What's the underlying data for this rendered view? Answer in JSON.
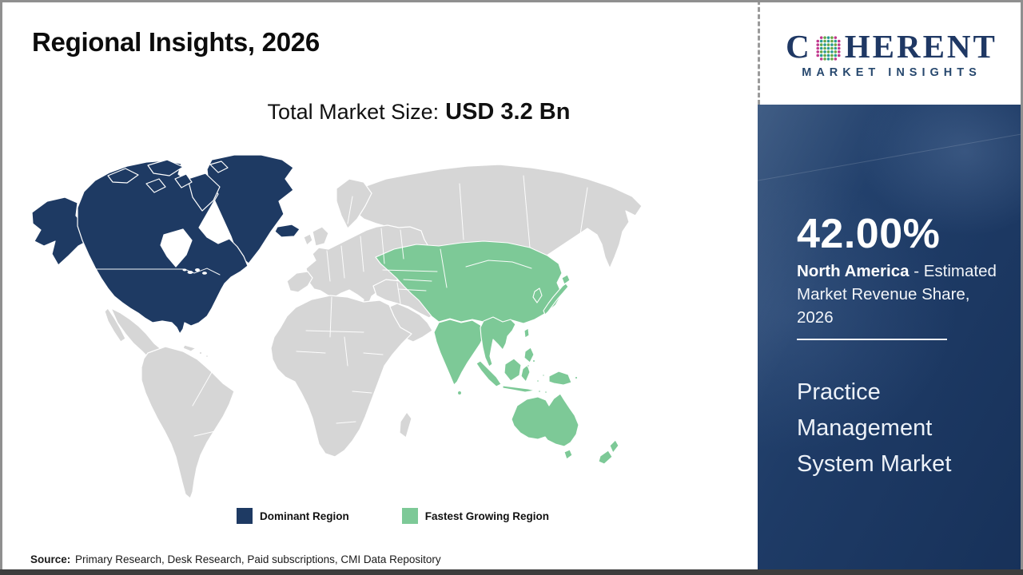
{
  "page": {
    "title": "Regional Insights, 2026",
    "subtitle_label": "Total Market Size:",
    "subtitle_value": "USD 3.2 Bn",
    "source_label": "Source:",
    "source_text": " Primary Research, Desk Research, Paid subscriptions, CMI Data Repository"
  },
  "legend": {
    "dominant_label": "Dominant Region",
    "fastest_label": "Fastest Growing Region"
  },
  "map": {
    "dominant_region": "North America",
    "fastest_growing_region": "Asia Pacific"
  },
  "side_panel": {
    "stat_value": "42.00%",
    "stat_region": "North America",
    "stat_desc_rest": " - Estimated Market Revenue Share, 2026",
    "market_title": "Practice Management System Market"
  },
  "logo": {
    "letter_c": "C",
    "word_rest": "HERENT",
    "tagline": "MARKET INSIGHTS",
    "globe_colors": [
      "#2a9a93",
      "#67a744",
      "#c2388e"
    ]
  },
  "colors": {
    "dominant": "#1e3a63",
    "fastest": "#7dc997",
    "land": "#d6d6d6",
    "panel": "#1d3a64",
    "logo_navy": "#1f3864"
  }
}
